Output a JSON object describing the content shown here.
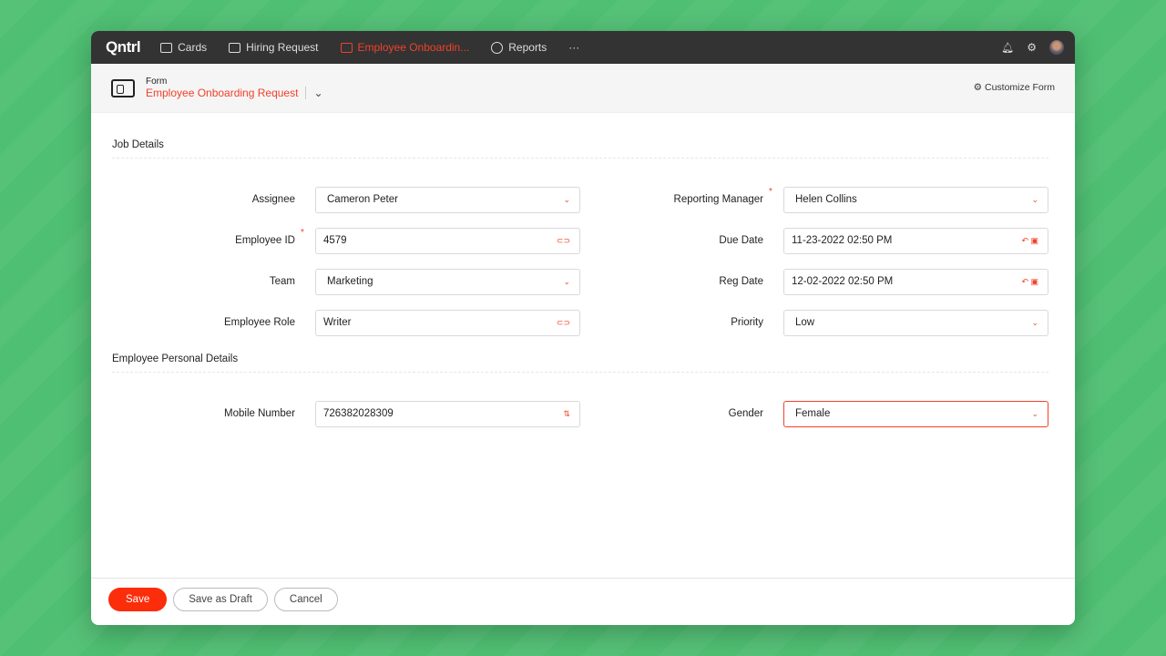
{
  "nav": {
    "logo": "Qntrl",
    "tabs": [
      {
        "label": "Cards",
        "icon": "cards-icon"
      },
      {
        "label": "Hiring Request",
        "icon": "form-icon"
      },
      {
        "label": "Employee Onboardin...",
        "icon": "form-icon",
        "active": true
      },
      {
        "label": "Reports",
        "icon": "reports-icon"
      }
    ],
    "more": "···"
  },
  "header": {
    "subtitle": "Form",
    "title": "Employee Onboarding Request",
    "customize": "Customize Form"
  },
  "sections": {
    "job": "Job Details",
    "personal": "Employee Personal Details"
  },
  "fields": {
    "assignee": {
      "label": "Assignee",
      "value": "Cameron Peter"
    },
    "employee_id": {
      "label": "Employee ID",
      "value": "4579",
      "required": true
    },
    "team": {
      "label": "Team",
      "value": "Marketing"
    },
    "role": {
      "label": "Employee Role",
      "value": "Writer"
    },
    "manager": {
      "label": "Reporting Manager",
      "value": "Helen Collins",
      "required": true
    },
    "due": {
      "label": "Due Date",
      "value": "11-23-2022 02:50 PM"
    },
    "reg": {
      "label": "Reg Date",
      "value": "12-02-2022 02:50 PM"
    },
    "priority": {
      "label": "Priority",
      "value": "Low"
    },
    "mobile": {
      "label": "Mobile Number",
      "value": "726382028309"
    },
    "gender": {
      "label": "Gender",
      "value": "Female"
    }
  },
  "footer": {
    "save": "Save",
    "draft": "Save as Draft",
    "cancel": "Cancel"
  },
  "colors": {
    "accent": "#f0412a",
    "nav": "#333333",
    "background": "#4fbf73"
  }
}
